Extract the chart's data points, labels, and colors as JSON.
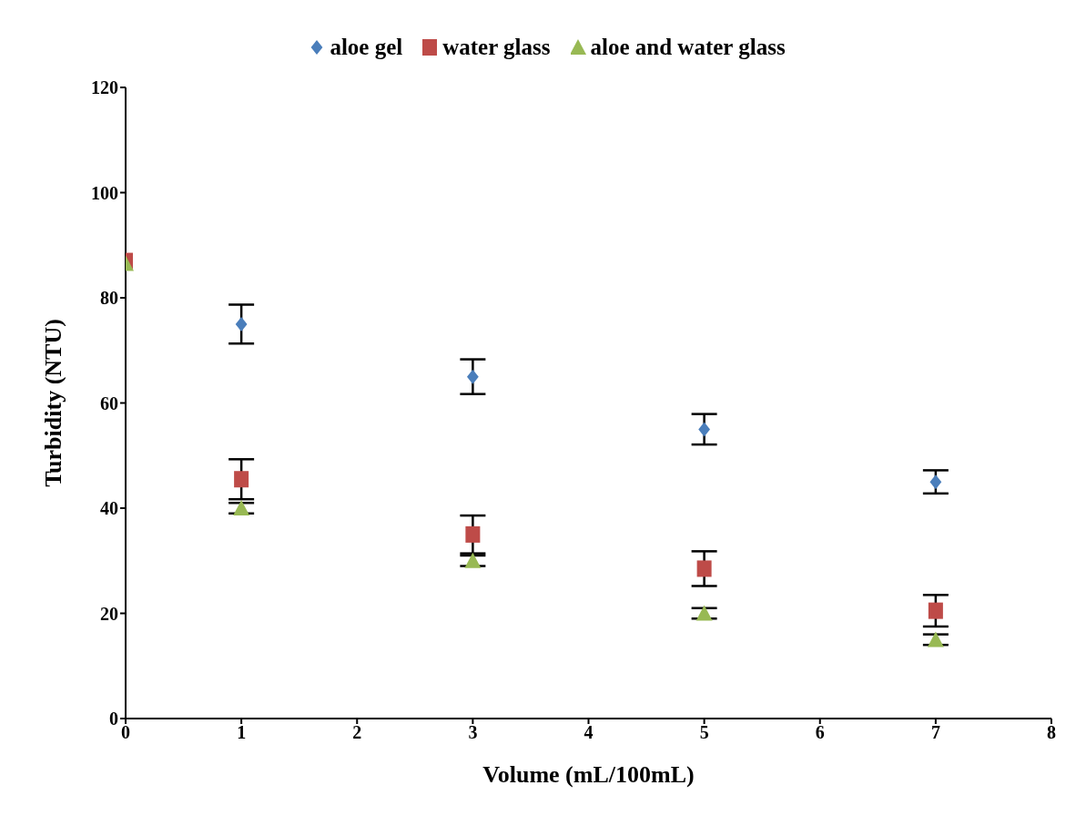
{
  "chart_data": {
    "type": "scatter",
    "xlabel": "Volume (mL/100mL)",
    "ylabel": "Turbidity   (NTU)",
    "x": [
      0,
      1,
      3,
      5,
      7
    ],
    "series": [
      {
        "name": "aloe gel",
        "color": "#4a7ebb",
        "marker": "diamond",
        "x": [
          1,
          3,
          5,
          7
        ],
        "values": [
          75,
          65,
          55,
          45
        ],
        "errors": [
          3.7,
          3.3,
          2.9,
          2.2
        ]
      },
      {
        "name": "water glass",
        "color": "#be4b48",
        "marker": "square",
        "values": [
          87,
          45.5,
          35,
          28.5,
          20.5
        ],
        "errors": [
          null,
          3.8,
          3.6,
          3.3,
          3
        ]
      },
      {
        "name": "aloe and water glass",
        "color": "#98b954",
        "marker": "triangle",
        "values": [
          86.5,
          40,
          30,
          20,
          15
        ],
        "errors": [
          null,
          1,
          1,
          1,
          1
        ]
      }
    ],
    "xlim": [
      0,
      8
    ],
    "xticks": [
      0,
      1,
      2,
      3,
      4,
      5,
      6,
      7,
      8
    ],
    "ylim": [
      0,
      120
    ],
    "yticks": [
      0,
      20,
      40,
      60,
      80,
      100,
      120
    ],
    "legend": "top"
  }
}
